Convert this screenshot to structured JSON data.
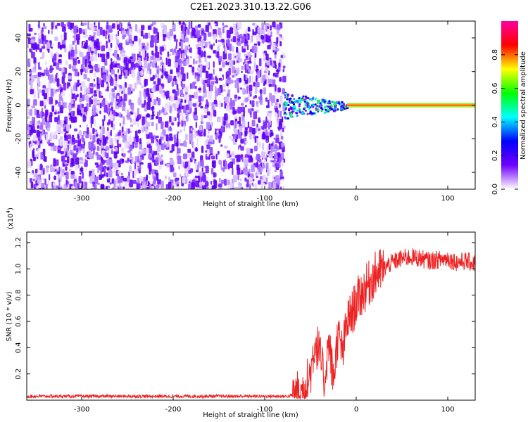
{
  "title": "C2E1.2023.310.13.22.G06",
  "chart_data": [
    {
      "type": "heatmap",
      "xlabel": "Height of straight line (km)",
      "ylabel": "Frequency (Hz)",
      "xlim": [
        -360,
        130
      ],
      "ylim": [
        -50,
        50
      ],
      "xticks": [
        -300,
        -200,
        -100,
        0,
        100
      ],
      "yticks": [
        -40,
        -20,
        0,
        20,
        40
      ],
      "noise_region_x": [
        -360,
        -80
      ],
      "signal_line": {
        "x_start": -10,
        "x_end": 130,
        "frequency": 0
      },
      "colorbar": {
        "label": "Normalized spectral amplitude",
        "range": [
          0,
          1
        ],
        "ticks": [
          0.0,
          0.2,
          0.4,
          0.6,
          0.8
        ],
        "colormap": [
          "#ffffff",
          "#7000ff",
          "#0000ff",
          "#00ffff",
          "#00ff00",
          "#ffff00",
          "#ff0000",
          "#ff00a0"
        ]
      }
    },
    {
      "type": "line",
      "xlabel": "Height of straight line (km)",
      "ylabel": "SNR (10 * v/v)",
      "yscale_label": "(x10",
      "yscale_exp": "4",
      "yscale_close": ")",
      "xlim": [
        -360,
        130
      ],
      "ylim": [
        0,
        12800
      ],
      "xticks": [
        -300,
        -200,
        -100,
        0,
        100
      ],
      "yticks": [
        2000,
        4000,
        6000,
        8000,
        10000,
        12000
      ],
      "ytick_labels": [
        "0.2",
        "0.4",
        "0.6",
        "0.8",
        "1.0",
        "1.2"
      ],
      "series": [
        {
          "color": "#ee2222",
          "x": [
            -360,
            -300,
            -200,
            -100,
            -75,
            -60,
            -50,
            -45,
            -40,
            -35,
            -30,
            -25,
            -20,
            -15,
            -10,
            -5,
            0,
            5,
            10,
            15,
            20,
            25,
            30,
            35,
            40,
            50,
            60,
            70,
            80,
            90,
            100,
            110,
            120,
            130
          ],
          "y": [
            300,
            300,
            300,
            300,
            300,
            500,
            2000,
            4500,
            3500,
            1500,
            4500,
            1500,
            5000,
            3500,
            6000,
            6500,
            7500,
            8000,
            8500,
            9000,
            9500,
            9800,
            10000,
            10300,
            10500,
            10800,
            10900,
            10800,
            10600,
            10700,
            10800,
            10500,
            10600,
            10400
          ]
        }
      ]
    }
  ]
}
